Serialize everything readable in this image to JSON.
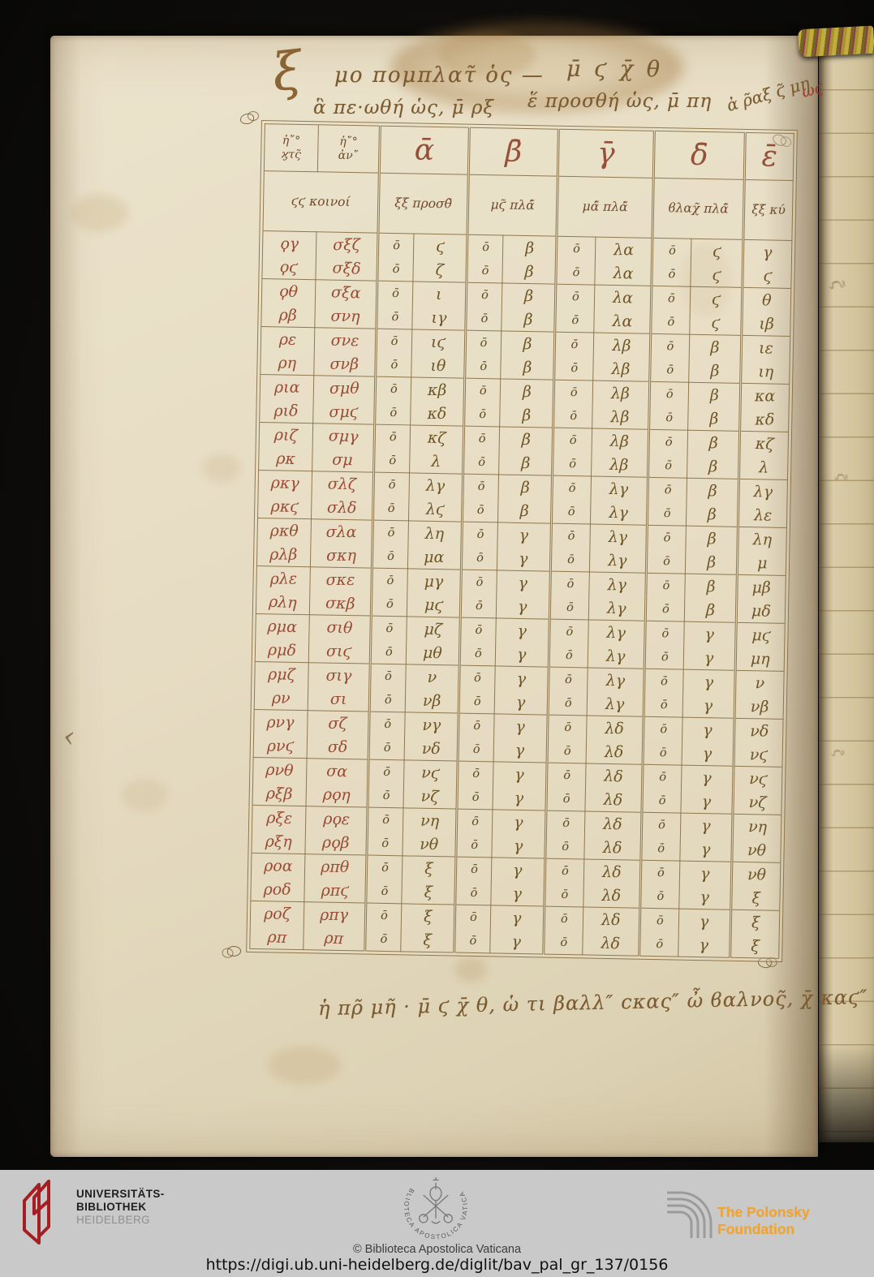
{
  "manuscript": {
    "header": {
      "flourish": "ξ",
      "line1_left": "μο πομπλατ̃ ὁς —",
      "line1_right": "μ̄ ϛ χ̄ θ",
      "line2_left": "ἃ πε·ωθή ὡς, μ̄ ρξ",
      "line2_right": "ἕ προσθή ὡς, μ̄ πη",
      "corner_note": "ἀ ρ̃αξ ϛ̃ μη",
      "corner_note_red": "ωϛ"
    },
    "table": {
      "corner_col1": [
        "ἡ῎°",
        "ϗτς̃"
      ],
      "corner_col2": [
        "ἡ῎°",
        "ἀν῎"
      ],
      "group_headers": [
        "ᾱ",
        "β̄",
        "γ̄",
        "δ̄",
        "ε̄"
      ],
      "sub_headers": [
        "ϛϛ κοινοί",
        "ξξ προσθ̃",
        "μϛ̃ πλά̃",
        "μά̃ πλά̃",
        "ϐλαχ̃ πλά̃",
        "ξξ κύ"
      ],
      "rows": [
        [
          "ϙγ",
          "σξζ",
          "ο̄",
          "ϛ",
          "ο̄",
          "β",
          "ο̄",
          "λα",
          "ο̄",
          "ϛ",
          "γ"
        ],
        [
          "ϙϛ",
          "σξδ",
          "ο̄",
          "ζ",
          "ο̄",
          "β",
          "ο̄",
          "λα",
          "ο̄",
          "ϛ",
          "ϛ"
        ],
        [
          "ϙθ",
          "σξα",
          "ο̄",
          "ι",
          "ο̄",
          "β",
          "ο̄",
          "λα",
          "ο̄",
          "ϛ",
          "θ"
        ],
        [
          "ρβ",
          "σνη",
          "ο̄",
          "ιγ",
          "ο̄",
          "β",
          "ο̄",
          "λα",
          "ο̄",
          "ϛ",
          "ιβ"
        ],
        [
          "ρε",
          "σνε",
          "ο̄",
          "ιϛ",
          "ο̄",
          "β",
          "ο̄",
          "λβ",
          "ο̄",
          "β",
          "ιε"
        ],
        [
          "ρη",
          "σνβ",
          "ο̄",
          "ιθ",
          "ο̄",
          "β",
          "ο̄",
          "λβ",
          "ο̄",
          "β",
          "ιη"
        ],
        [
          "ρια",
          "σμθ",
          "ο̄",
          "κβ",
          "ο̄",
          "β",
          "ο̄",
          "λβ",
          "ο̄",
          "β",
          "κα"
        ],
        [
          "ριδ",
          "σμϛ",
          "ο̄",
          "κδ",
          "ο̄",
          "β",
          "ο̄",
          "λβ",
          "ο̄",
          "β",
          "κδ"
        ],
        [
          "ριζ",
          "σμγ",
          "ο̄",
          "κζ",
          "ο̄",
          "β",
          "ο̄",
          "λβ",
          "ο̄",
          "β",
          "κζ"
        ],
        [
          "ρκ",
          "σμ",
          "ο̄",
          "λ",
          "ο̄",
          "β",
          "ο̄",
          "λβ",
          "ο̄",
          "β",
          "λ"
        ],
        [
          "ρκγ",
          "σλζ",
          "ο̄",
          "λγ",
          "ο̄",
          "β",
          "ο̄",
          "λγ",
          "ο̄",
          "β",
          "λγ"
        ],
        [
          "ρκϛ",
          "σλδ",
          "ο̄",
          "λϛ",
          "ο̄",
          "β",
          "ο̄",
          "λγ",
          "ο̄",
          "β",
          "λε"
        ],
        [
          "ρκθ",
          "σλα",
          "ο̄",
          "λη",
          "ο̄",
          "γ",
          "ο̄",
          "λγ",
          "ο̄",
          "β",
          "λη"
        ],
        [
          "ρλβ",
          "σκη",
          "ο̄",
          "μα",
          "ο̄",
          "γ",
          "ο̄",
          "λγ",
          "ο̄",
          "β",
          "μ"
        ],
        [
          "ρλε",
          "σκε",
          "ο̄",
          "μγ",
          "ο̄",
          "γ",
          "ο̄",
          "λγ",
          "ο̄",
          "β",
          "μβ"
        ],
        [
          "ρλη",
          "σκβ",
          "ο̄",
          "μϛ",
          "ο̄",
          "γ",
          "ο̄",
          "λγ",
          "ο̄",
          "β",
          "μδ"
        ],
        [
          "ρμα",
          "σιθ",
          "ο̄",
          "μζ",
          "ο̄",
          "γ",
          "ο̄",
          "λγ",
          "ο̄",
          "γ",
          "μϛ"
        ],
        [
          "ρμδ",
          "σιϛ",
          "ο̄",
          "μθ",
          "ο̄",
          "γ",
          "ο̄",
          "λγ",
          "ο̄",
          "γ",
          "μη"
        ],
        [
          "ρμζ",
          "σιγ",
          "ο̄",
          "ν",
          "ο̄",
          "γ",
          "ο̄",
          "λγ",
          "ο̄",
          "γ",
          "ν"
        ],
        [
          "ρν",
          "σι",
          "ο̄",
          "νβ",
          "ο̄",
          "γ",
          "ο̄",
          "λγ",
          "ο̄",
          "γ",
          "νβ"
        ],
        [
          "ρνγ",
          "σζ",
          "ο̄",
          "νγ",
          "ο̄",
          "γ",
          "ο̄",
          "λδ",
          "ο̄",
          "γ",
          "νδ"
        ],
        [
          "ρνϛ",
          "σδ",
          "ο̄",
          "νδ",
          "ο̄",
          "γ",
          "ο̄",
          "λδ",
          "ο̄",
          "γ",
          "νϛ"
        ],
        [
          "ρνθ",
          "σα",
          "ο̄",
          "νϛ",
          "ο̄",
          "γ",
          "ο̄",
          "λδ",
          "ο̄",
          "γ",
          "νϛ"
        ],
        [
          "ρξβ",
          "ρϙη",
          "ο̄",
          "νζ",
          "ο̄",
          "γ",
          "ο̄",
          "λδ",
          "ο̄",
          "γ",
          "νζ"
        ],
        [
          "ρξε",
          "ρϙε",
          "ο̄",
          "νη",
          "ο̄",
          "γ",
          "ο̄",
          "λδ",
          "ο̄",
          "γ",
          "νη"
        ],
        [
          "ρξη",
          "ρϙβ",
          "ο̄",
          "νθ",
          "ο̄",
          "γ",
          "ο̄",
          "λδ",
          "ο̄",
          "γ",
          "νθ"
        ],
        [
          "ροα",
          "ρπθ",
          "ο̄",
          "ξ",
          "ο̄",
          "γ",
          "ο̄",
          "λδ",
          "ο̄",
          "γ",
          "νθ"
        ],
        [
          "ροδ",
          "ρπϛ",
          "ο̄",
          "ξ",
          "ο̄",
          "γ",
          "ο̄",
          "λδ",
          "ο̄",
          "γ",
          "ξ"
        ],
        [
          "ροζ",
          "ρπγ",
          "ο̄",
          "ξ",
          "ο̄",
          "γ",
          "ο̄",
          "λδ",
          "ο̄",
          "γ",
          "ξ"
        ],
        [
          "ρπ",
          "ρπ",
          "ο̄",
          "ξ",
          "ο̄",
          "γ",
          "ο̄",
          "λδ",
          "ο̄",
          "γ",
          "ξ"
        ]
      ]
    },
    "bottom_note": "ἡ πρ̃ μη̃ · μ̄ ϛ χ̄ θ, ὡ τι βαλλ″ ϲκας″ ὦ ϐαλνος̃, χ̄ καϛ″",
    "margin_mark": "‹",
    "sliver_mark": "ϛ̃"
  },
  "footer": {
    "ub_logo": {
      "line1": "UNIVERSITÄTS-",
      "line2": "BIBLIOTHEK",
      "line3": "HEIDELBERG"
    },
    "vatican": {
      "circle_text": "BIBLIOTECA  APOSTOLICA  VATICANA",
      "copyright": "© Biblioteca Apostolica Vaticana"
    },
    "polonsky": {
      "label": "The Polonsky Foundation"
    },
    "url": "https://digi.ub.uni-heidelberg.de/diglit/bav_pal_gr_137/0156",
    "colors": {
      "polonsky_orange": "#f0a32e",
      "ub_red": "#a41e22",
      "ink_brown": "#6f5526",
      "ink_red": "#9b4a33"
    }
  }
}
